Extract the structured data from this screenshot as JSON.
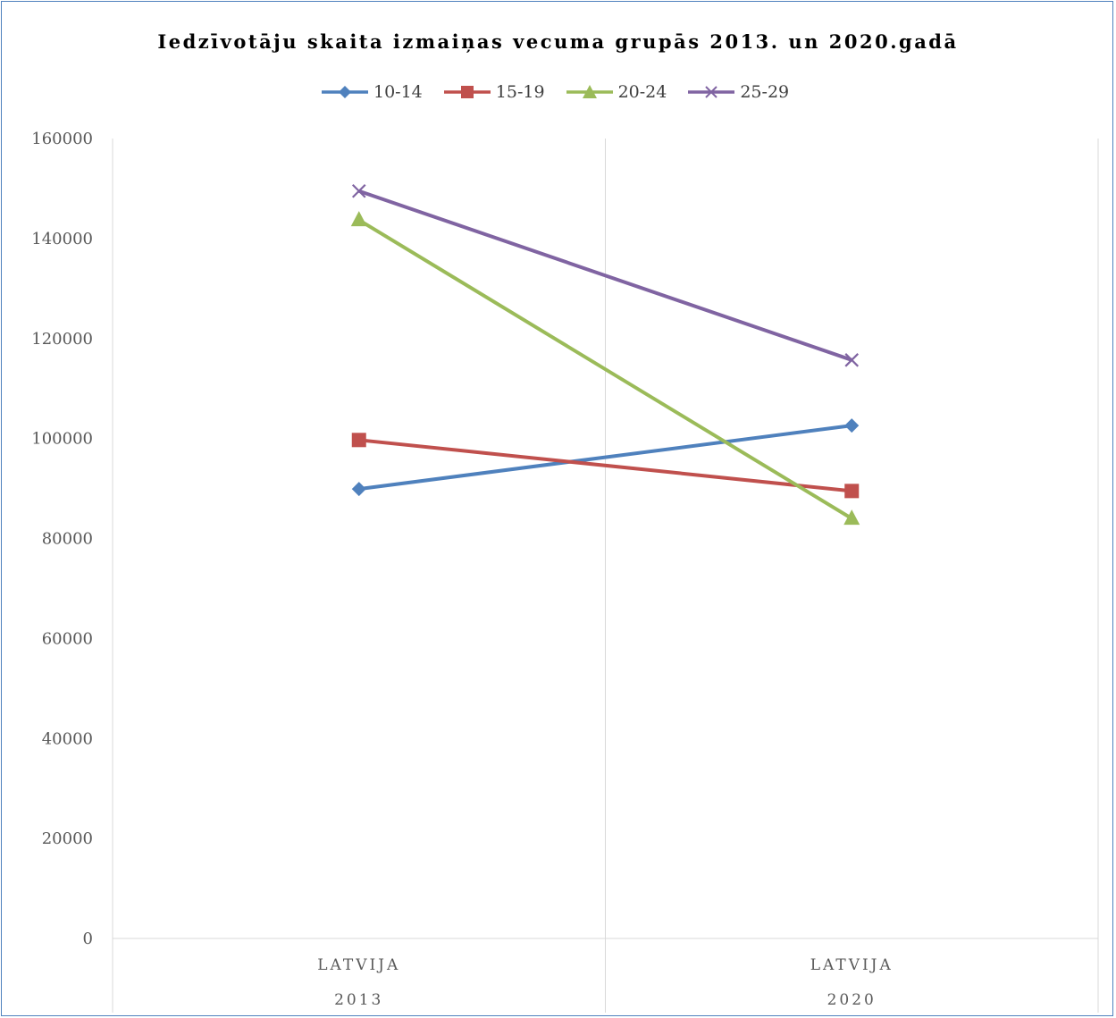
{
  "chart_data": {
    "type": "line",
    "title": "Iedzīvotāju skaita izmaiņas vecuma grupās 2013. un 2020.gadā",
    "categories": [
      {
        "label": "LATVIJA",
        "group": "2013"
      },
      {
        "label": "LATVIJA",
        "group": "2020"
      }
    ],
    "series": [
      {
        "name": "10-14",
        "values": [
          89900,
          102600
        ],
        "color": "#4f81bd",
        "marker": "diamond"
      },
      {
        "name": "15-19",
        "values": [
          99700,
          89500
        ],
        "color": "#c0504d",
        "marker": "square"
      },
      {
        "name": "20-24",
        "values": [
          143700,
          84000
        ],
        "color": "#9bbb59",
        "marker": "triangle"
      },
      {
        "name": "25-29",
        "values": [
          149500,
          115700
        ],
        "color": "#8064a2",
        "marker": "x"
      }
    ],
    "ylim": [
      0,
      160000
    ],
    "yticks": [
      0,
      20000,
      40000,
      60000,
      80000,
      100000,
      120000,
      140000,
      160000
    ],
    "grid": "vertical category separators",
    "legend": "top"
  }
}
